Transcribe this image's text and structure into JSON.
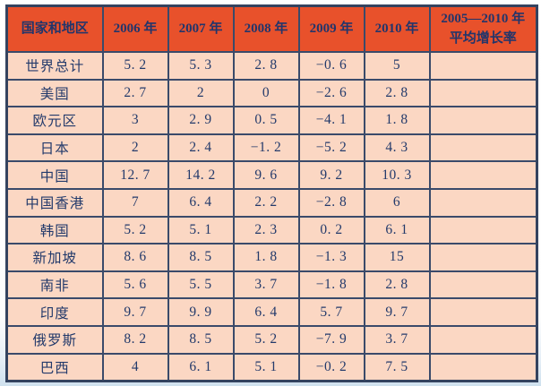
{
  "colors": {
    "header_bg": "#E8512B",
    "cell_bg": "#FBD7C3",
    "text_navy": "#233A6B",
    "grid_border": "#3A4A6A",
    "outer_border": "#34435F"
  },
  "table": {
    "columns": [
      "国家和地区",
      "2006 年",
      "2007 年",
      "2008 年",
      "2009 年",
      "2010 年"
    ],
    "avg_header": {
      "line1": "2005—2010 年",
      "line2": "平均增长率"
    },
    "rows": [
      {
        "cells": [
          "世界总计",
          "5. 2",
          "5. 3",
          "2. 8",
          "−0. 6",
          "5",
          ""
        ]
      },
      {
        "cells": [
          "美国",
          "2. 7",
          "2",
          "0",
          "−2. 6",
          "2. 8",
          ""
        ]
      },
      {
        "cells": [
          "欧元区",
          "3",
          "2. 9",
          "0. 5",
          "−4. 1",
          "1. 8",
          ""
        ]
      },
      {
        "cells": [
          "日本",
          "2",
          "2. 4",
          "−1. 2",
          "−5. 2",
          "4. 3",
          ""
        ]
      },
      {
        "cells": [
          "中国",
          "12. 7",
          "14. 2",
          "9. 6",
          "9. 2",
          "10. 3",
          ""
        ]
      },
      {
        "cells": [
          "中国香港",
          "7",
          "6. 4",
          "2. 2",
          "−2. 8",
          "6",
          ""
        ]
      },
      {
        "cells": [
          "韩国",
          "5. 2",
          "5. 1",
          "2. 3",
          "0. 2",
          "6. 1",
          ""
        ]
      },
      {
        "cells": [
          "新加坡",
          "8. 6",
          "8. 5",
          "1. 8",
          "−1. 3",
          "15",
          ""
        ]
      },
      {
        "cells": [
          "南非",
          "5. 6",
          "5. 5",
          "3. 7",
          "−1. 8",
          "2. 8",
          ""
        ]
      },
      {
        "cells": [
          "印度",
          "9. 7",
          "9. 9",
          "6. 4",
          "5. 7",
          "9. 7",
          ""
        ]
      },
      {
        "cells": [
          "俄罗斯",
          "8. 2",
          "8. 5",
          "5. 2",
          "−7. 9",
          "3. 7",
          ""
        ]
      },
      {
        "cells": [
          "巴西",
          "4",
          "6. 1",
          "5. 1",
          "−0. 2",
          "7. 5",
          ""
        ]
      }
    ]
  },
  "chart_data": {
    "type": "table",
    "columns": [
      "国家和地区",
      "2006 年",
      "2007 年",
      "2008 年",
      "2009 年",
      "2010 年",
      "2005—2010 年平均增长率"
    ],
    "rows": [
      [
        "世界总计",
        5.2,
        5.3,
        2.8,
        -0.6,
        5,
        null
      ],
      [
        "美国",
        2.7,
        2,
        0,
        -2.6,
        2.8,
        null
      ],
      [
        "欧元区",
        3,
        2.9,
        0.5,
        -4.1,
        1.8,
        null
      ],
      [
        "日本",
        2,
        2.4,
        -1.2,
        -5.2,
        4.3,
        null
      ],
      [
        "中国",
        12.7,
        14.2,
        9.6,
        9.2,
        10.3,
        null
      ],
      [
        "中国香港",
        7,
        6.4,
        2.2,
        -2.8,
        6,
        null
      ],
      [
        "韩国",
        5.2,
        5.1,
        2.3,
        0.2,
        6.1,
        null
      ],
      [
        "新加坡",
        8.6,
        8.5,
        1.8,
        -1.3,
        15,
        null
      ],
      [
        "南非",
        5.6,
        5.5,
        3.7,
        -1.8,
        2.8,
        null
      ],
      [
        "印度",
        9.7,
        9.9,
        6.4,
        5.7,
        9.7,
        null
      ],
      [
        "俄罗斯",
        8.2,
        8.5,
        5.2,
        -7.9,
        3.7,
        null
      ],
      [
        "巴西",
        4,
        6.1,
        5.1,
        -0.2,
        7.5,
        null
      ]
    ]
  }
}
